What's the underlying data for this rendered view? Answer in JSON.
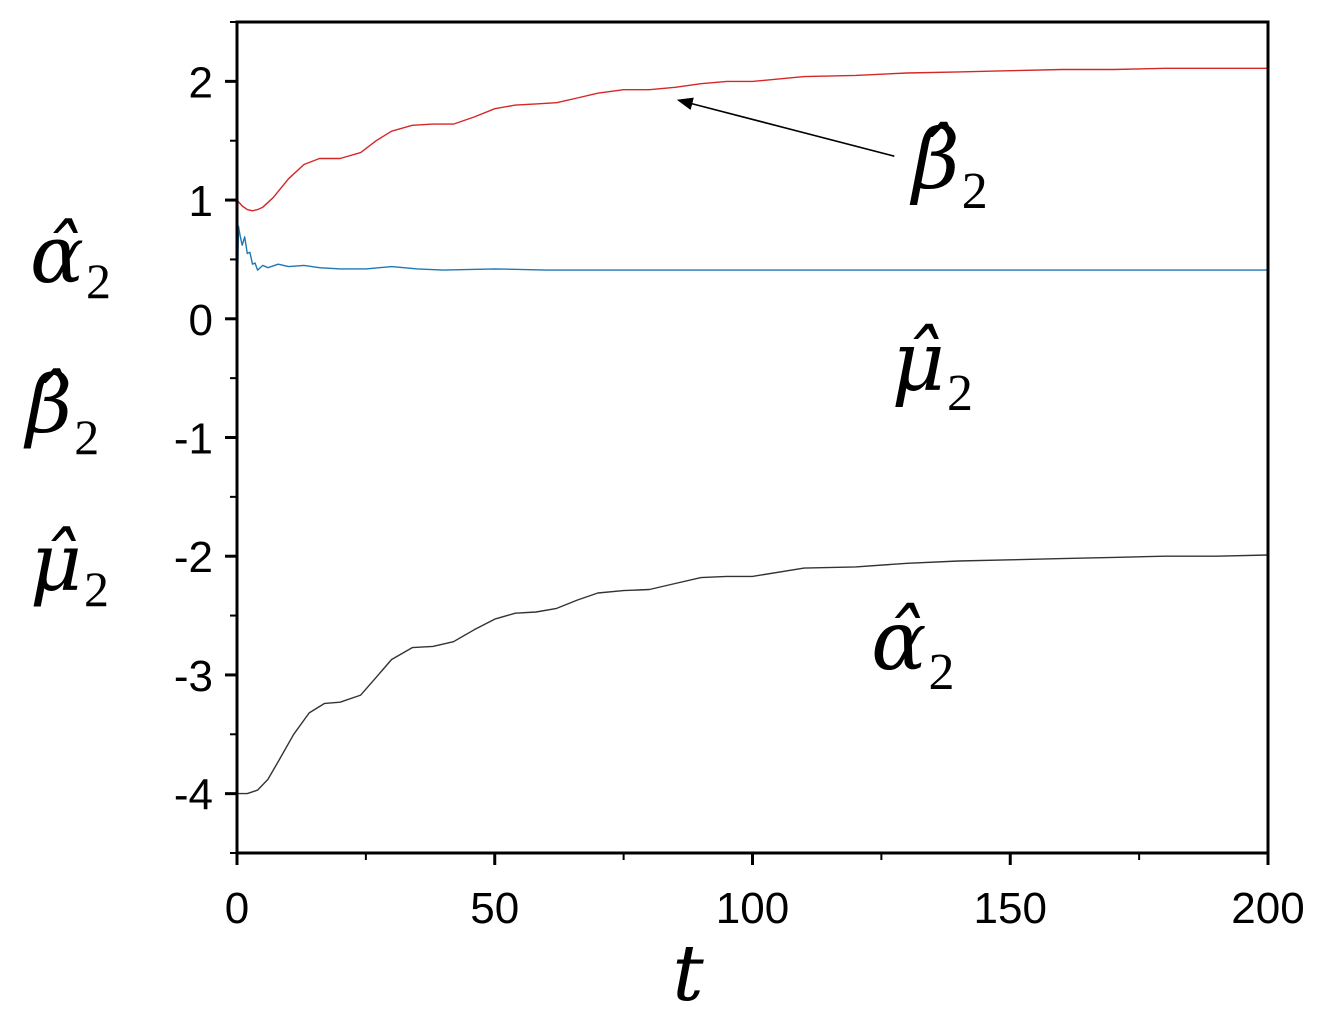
{
  "chart_data": {
    "type": "line",
    "title": "",
    "xlabel": "t",
    "ylabel": [
      "α̂2",
      "β̂2",
      "μ̂2"
    ],
    "xlim": [
      0,
      200
    ],
    "ylim": [
      -4.5,
      2.5
    ],
    "x_ticks": [
      0,
      50,
      100,
      150,
      200
    ],
    "x_tick_labels": [
      "0",
      "50",
      "100",
      "150",
      "200"
    ],
    "y_ticks": [
      -4,
      -3,
      -2,
      -1,
      0,
      1,
      2
    ],
    "y_tick_labels": [
      "-4",
      "-3",
      "-2",
      "-1",
      "0",
      "1",
      "2"
    ],
    "grid": false,
    "legend": "none",
    "series": [
      {
        "name": "β̂2",
        "color": "#d62728",
        "x": [
          0,
          1,
          2,
          3,
          4,
          5,
          7,
          10,
          13,
          16,
          20,
          24,
          27,
          30,
          34,
          38,
          42,
          46,
          50,
          54,
          58,
          62,
          66,
          70,
          75,
          80,
          85,
          90,
          95,
          100,
          110,
          120,
          130,
          140,
          150,
          160,
          170,
          180,
          190,
          200
        ],
        "y": [
          1.0,
          0.95,
          0.92,
          0.91,
          0.92,
          0.94,
          1.02,
          1.18,
          1.3,
          1.35,
          1.35,
          1.4,
          1.5,
          1.58,
          1.63,
          1.64,
          1.64,
          1.7,
          1.77,
          1.8,
          1.81,
          1.82,
          1.86,
          1.9,
          1.93,
          1.93,
          1.95,
          1.98,
          2.0,
          2.0,
          2.04,
          2.05,
          2.07,
          2.08,
          2.09,
          2.1,
          2.1,
          2.11,
          2.11,
          2.11
        ]
      },
      {
        "name": "μ̂2",
        "color": "#1f77b4",
        "x": [
          0,
          0.3,
          0.6,
          1,
          1.5,
          2,
          2.5,
          3,
          3.5,
          4,
          5,
          6,
          8,
          10,
          13,
          16,
          20,
          25,
          30,
          35,
          40,
          50,
          60,
          80,
          100,
          150,
          200
        ],
        "y": [
          0.0,
          0.78,
          0.7,
          0.62,
          0.69,
          0.55,
          0.56,
          0.46,
          0.47,
          0.41,
          0.45,
          0.43,
          0.46,
          0.44,
          0.45,
          0.43,
          0.42,
          0.42,
          0.44,
          0.42,
          0.41,
          0.42,
          0.41,
          0.41,
          0.41,
          0.41,
          0.41
        ]
      },
      {
        "name": "α̂2",
        "color": "#333333",
        "x": [
          0,
          2,
          4,
          6,
          8,
          11,
          14,
          17,
          20,
          24,
          27,
          30,
          34,
          38,
          42,
          46,
          50,
          54,
          58,
          62,
          66,
          70,
          75,
          80,
          85,
          90,
          95,
          100,
          110,
          120,
          130,
          140,
          150,
          160,
          170,
          180,
          190,
          200
        ],
        "y": [
          -4.0,
          -4.0,
          -3.97,
          -3.88,
          -3.73,
          -3.5,
          -3.32,
          -3.24,
          -3.23,
          -3.17,
          -3.02,
          -2.87,
          -2.77,
          -2.76,
          -2.72,
          -2.62,
          -2.53,
          -2.48,
          -2.47,
          -2.44,
          -2.37,
          -2.31,
          -2.29,
          -2.28,
          -2.23,
          -2.18,
          -2.17,
          -2.17,
          -2.1,
          -2.09,
          -2.06,
          -2.04,
          -2.03,
          -2.02,
          -2.01,
          -2.0,
          -2.0,
          -1.99
        ]
      }
    ],
    "annotations": [
      {
        "base": "β̂",
        "sub": "2",
        "x": 131,
        "y": 1.1,
        "arrow_to": {
          "x": 85,
          "y": 1.86
        }
      },
      {
        "base": "μ̂",
        "sub": "2",
        "x": 127,
        "y": -0.6
      },
      {
        "base": "α̂",
        "sub": "2",
        "x": 123,
        "y": -2.95
      }
    ]
  }
}
